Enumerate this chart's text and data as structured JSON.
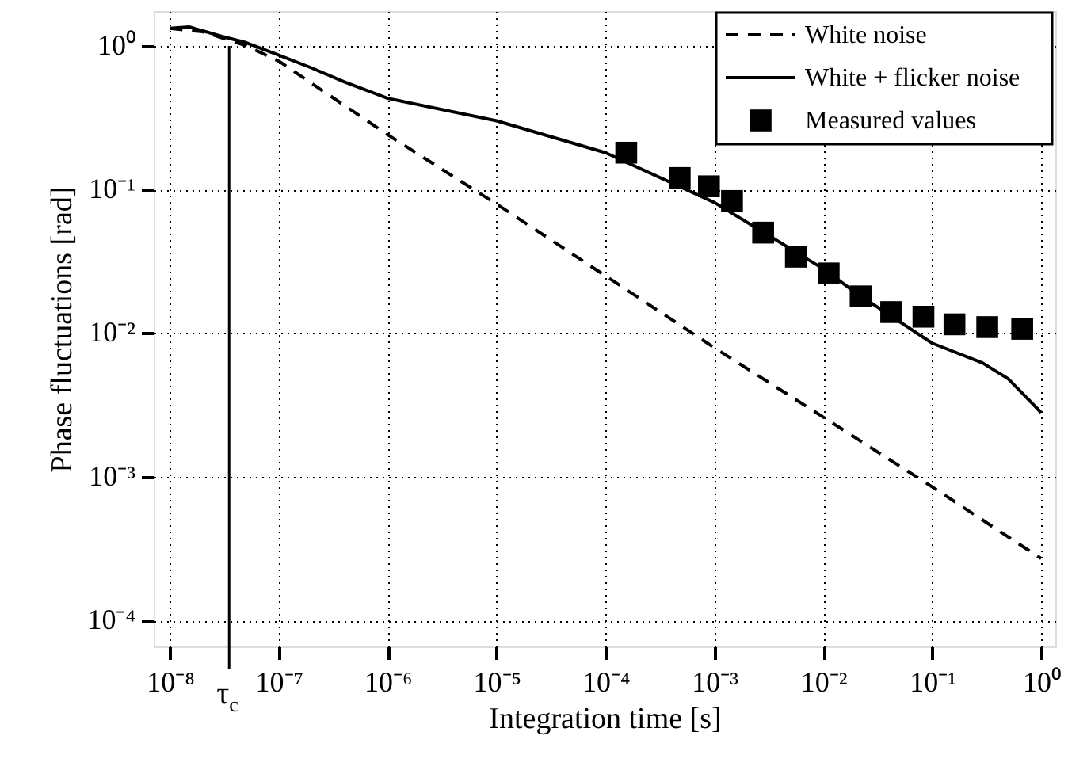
{
  "chart_data": {
    "type": "line",
    "xlabel": "Integration time [s]",
    "ylabel": "Phase fluctuations [rad]",
    "log": "xy",
    "grid": true,
    "legend": "top right",
    "xlim": [
      7.1e-09,
      1.35
    ],
    "ylim": [
      6.6e-05,
      1.74
    ],
    "xticks": [
      {
        "value": 1e-08,
        "label": "10⁻⁸"
      },
      {
        "value": 1e-07,
        "label": "10⁻⁷"
      },
      {
        "value": 1e-06,
        "label": "10⁻⁶"
      },
      {
        "value": 1e-05,
        "label": "10⁻⁵"
      },
      {
        "value": 0.0001,
        "label": "10⁻⁴"
      },
      {
        "value": 0.001,
        "label": "10⁻³"
      },
      {
        "value": 0.01,
        "label": "10⁻²"
      },
      {
        "value": 0.1,
        "label": "10⁻¹"
      },
      {
        "value": 1,
        "label": "10⁰"
      }
    ],
    "yticks": [
      {
        "value": 0.0001,
        "label": "10⁻⁴"
      },
      {
        "value": 0.001,
        "label": "10⁻³"
      },
      {
        "value": 0.01,
        "label": "10⁻²"
      },
      {
        "value": 0.1,
        "label": "10⁻¹"
      },
      {
        "value": 1,
        "label": "10⁰"
      }
    ],
    "ref_lines": [
      {
        "axis": "x",
        "value": 3.5e-08,
        "label": "τ$_{c}$"
      }
    ],
    "series": [
      {
        "name": "White noise",
        "type": "line",
        "line_style": "dashed",
        "color": "#000000",
        "x": [
          1e-08,
          2e-08,
          5e-08,
          1e-07,
          1e-06,
          1e-05,
          0.0001,
          0.001,
          0.01,
          0.1,
          1
        ],
        "values": [
          1.32,
          1.25,
          1.0,
          0.78,
          0.24,
          0.079,
          0.025,
          0.0079,
          0.0026,
          0.00085,
          0.00027
        ]
      },
      {
        "name": "White + flicker noise",
        "type": "line",
        "line_style": "solid",
        "color": "#000000",
        "x": [
          1e-08,
          1.5e-08,
          3e-08,
          5e-08,
          1e-07,
          2e-07,
          4e-07,
          1e-06,
          1e-05,
          0.0001,
          0.001,
          0.01,
          0.02,
          0.1,
          0.29,
          0.5,
          1
        ],
        "values": [
          1.32,
          1.35,
          1.16,
          1.05,
          0.86,
          0.7,
          0.56,
          0.43,
          0.3,
          0.18,
          0.081,
          0.028,
          0.019,
          0.0085,
          0.0062,
          0.0048,
          0.0028
        ]
      },
      {
        "name": "Measured values",
        "type": "scatter",
        "marker": "square",
        "color": "#000000",
        "x": [
          0.000155,
          0.00048,
          0.00089,
          0.00145,
          0.0028,
          0.0056,
          0.0112,
          0.022,
          0.042,
          0.083,
          0.16,
          0.32,
          0.67
        ],
        "values": [
          0.18,
          0.12,
          0.105,
          0.083,
          0.05,
          0.034,
          0.026,
          0.018,
          0.014,
          0.013,
          0.0115,
          0.011,
          0.0107
        ]
      }
    ]
  }
}
